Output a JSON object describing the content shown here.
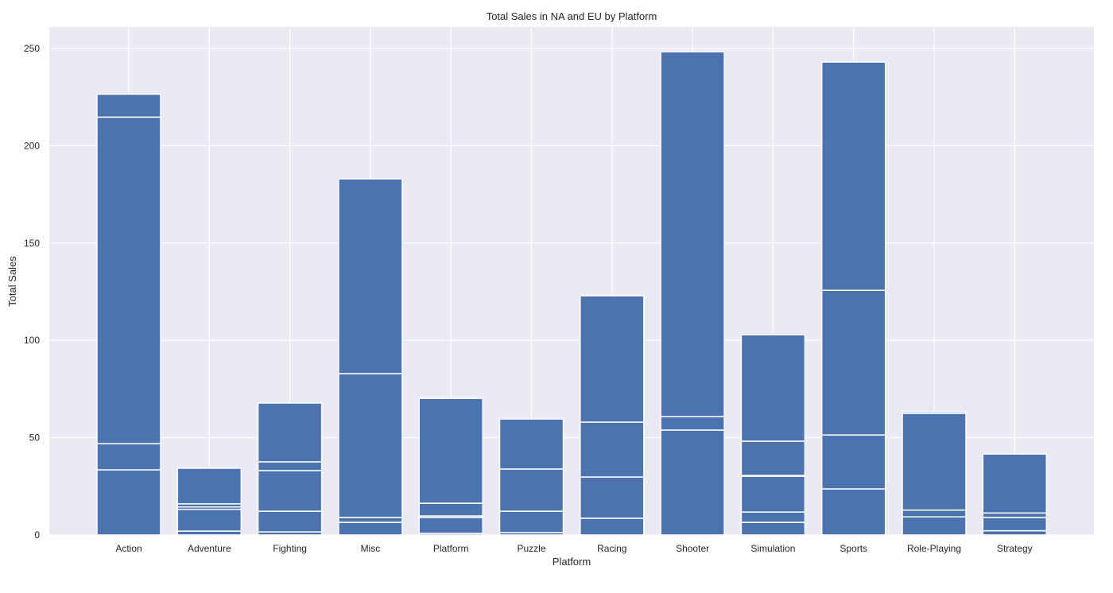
{
  "chart_data": {
    "type": "bar",
    "stacked": true,
    "title": "Total Sales in NA and EU by Platform",
    "xlabel": "Platform",
    "ylabel": "Total Sales",
    "ylim": [
      0,
      261
    ],
    "yticks": [
      0,
      50,
      100,
      150,
      200,
      250
    ],
    "grid": true,
    "legend": null,
    "colors": {
      "bar": "#4C72B0",
      "bar_edge": "#ffffff",
      "plot_bg": "#EAEAF2",
      "grid": "#ffffff",
      "text": "#262626"
    },
    "categories": [
      "Action",
      "Adventure",
      "Fighting",
      "Misc",
      "Platform",
      "Puzzle",
      "Racing",
      "Shooter",
      "Simulation",
      "Sports",
      "Role-Playing",
      "Strategy"
    ],
    "stack_segments": [
      [
        33.5,
        13.4,
        167.8,
        11.8
      ],
      [
        2.0,
        11.2,
        1.2,
        1.6,
        18.3
      ],
      [
        1.6,
        10.6,
        20.9,
        4.5,
        30.2
      ],
      [
        6.5,
        2.5,
        73.9,
        100.1
      ],
      [
        0.8,
        8.2,
        0.8,
        6.5,
        53.9
      ],
      [
        1.2,
        11.0,
        21.7,
        25.7
      ],
      [
        8.6,
        21.2,
        28.2,
        64.9
      ],
      [
        53.9,
        6.9,
        187.5
      ],
      [
        6.5,
        5.3,
        18.4,
        0.4,
        17.6,
        54.7
      ],
      [
        23.7,
        27.7,
        74.3,
        117.3
      ],
      [
        9.3,
        3.5,
        49.7,
        0.8
      ],
      [
        2.2,
        6.8,
        2.3,
        30.3
      ]
    ],
    "totals": [
      226.5,
      34.3,
      67.8,
      183.0,
      70.2,
      59.6,
      122.9,
      248.3,
      102.9,
      243.0,
      63.3,
      41.6
    ]
  }
}
